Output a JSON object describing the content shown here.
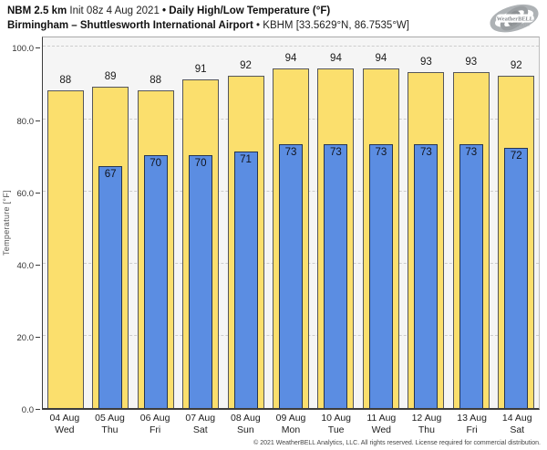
{
  "header": {
    "model": "NBM 2.5 km",
    "init": " Init 08z 4 Aug 2021 ",
    "sep1": "•",
    "product": " Daily High/Low Temperature (°F)",
    "location": "Birmingham – Shuttlesworth International Airport",
    "sep2": "•",
    "station": " KBHM [33.5629°N, 86.7535°W]"
  },
  "logo": {
    "brand": "WeatherBELL",
    "sub": "Analytics LLC"
  },
  "chart_data": {
    "type": "bar",
    "title": "Daily High/Low Temperature (°F)",
    "ylabel": "Temperature [°F]",
    "ylim": [
      0,
      103.4
    ],
    "yticks": [
      0,
      20,
      40,
      60,
      80,
      100
    ],
    "ytick_labels": [
      "0.0",
      "20.0",
      "40.0",
      "60.0",
      "80.0",
      "100.0"
    ],
    "grid": "horizontal-dashed",
    "legend": "none",
    "categories": [
      {
        "date": "04 Aug",
        "day": "Wed"
      },
      {
        "date": "05 Aug",
        "day": "Thu"
      },
      {
        "date": "06 Aug",
        "day": "Fri"
      },
      {
        "date": "07 Aug",
        "day": "Sat"
      },
      {
        "date": "08 Aug",
        "day": "Sun"
      },
      {
        "date": "09 Aug",
        "day": "Mon"
      },
      {
        "date": "10 Aug",
        "day": "Tue"
      },
      {
        "date": "11 Aug",
        "day": "Wed"
      },
      {
        "date": "12 Aug",
        "day": "Thu"
      },
      {
        "date": "13 Aug",
        "day": "Fri"
      },
      {
        "date": "14 Aug",
        "day": "Sat"
      }
    ],
    "series": [
      {
        "name": "High",
        "color": "#fbdf6d",
        "values": [
          88,
          89,
          88,
          91,
          92,
          94,
          94,
          94,
          93,
          93,
          92
        ]
      },
      {
        "name": "Low",
        "color": "#5b8de2",
        "values": [
          null,
          67,
          70,
          70,
          71,
          73,
          73,
          73,
          73,
          73,
          72
        ]
      }
    ]
  },
  "footer": "© 2021 WeatherBELL Analytics, LLC. All rights reserved. License required for commercial distribution."
}
